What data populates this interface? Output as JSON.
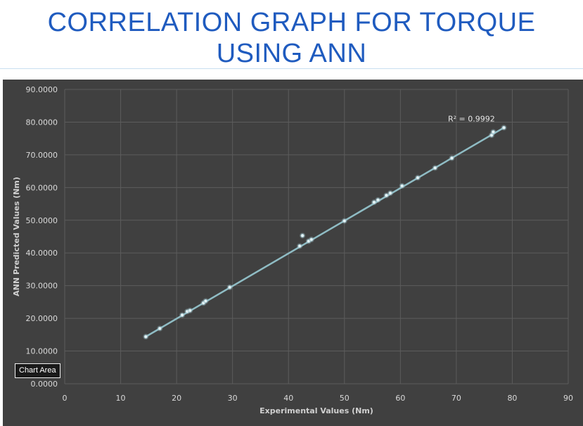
{
  "slide": {
    "title_line1": "CORRELATION GRAPH FOR TORQUE",
    "title_line2": "USING ANN"
  },
  "tooltip": {
    "label": "Chart Area"
  },
  "chart_data": {
    "type": "scatter",
    "xlabel": "Experimental Values (Nm)",
    "ylabel": "ANN Predicted Values (Nm)",
    "xlim": [
      0,
      90
    ],
    "ylim": [
      0,
      90
    ],
    "x_ticks": [
      0,
      10,
      20,
      30,
      40,
      50,
      60,
      70,
      80,
      90
    ],
    "y_ticks": [
      "0.0000",
      "10.0000",
      "20.0000",
      "30.0000",
      "40.0000",
      "50.0000",
      "60.0000",
      "70.0000",
      "80.0000",
      "90.0000"
    ],
    "grid": true,
    "trendline": {
      "type": "linear",
      "r2_label": "R² = 0.9992",
      "x": [
        14.5,
        78.5
      ],
      "y": [
        14.4,
        78.3
      ]
    },
    "points": [
      {
        "x": 14.5,
        "y": 14.4
      },
      {
        "x": 17.0,
        "y": 16.9
      },
      {
        "x": 21.0,
        "y": 21.0
      },
      {
        "x": 21.9,
        "y": 22.1
      },
      {
        "x": 22.4,
        "y": 22.4
      },
      {
        "x": 24.8,
        "y": 24.7
      },
      {
        "x": 25.2,
        "y": 25.3
      },
      {
        "x": 29.5,
        "y": 29.5
      },
      {
        "x": 42.0,
        "y": 42.1
      },
      {
        "x": 42.5,
        "y": 45.3
      },
      {
        "x": 43.6,
        "y": 43.6
      },
      {
        "x": 44.1,
        "y": 44.1
      },
      {
        "x": 50.0,
        "y": 49.8
      },
      {
        "x": 55.3,
        "y": 55.5
      },
      {
        "x": 56.0,
        "y": 56.2
      },
      {
        "x": 57.5,
        "y": 57.6
      },
      {
        "x": 58.2,
        "y": 58.3
      },
      {
        "x": 60.3,
        "y": 60.5
      },
      {
        "x": 63.1,
        "y": 63.0
      },
      {
        "x": 66.2,
        "y": 66.0
      },
      {
        "x": 69.2,
        "y": 69.0
      },
      {
        "x": 76.3,
        "y": 76.0
      },
      {
        "x": 76.6,
        "y": 77.0
      },
      {
        "x": 78.5,
        "y": 78.3
      }
    ],
    "colors": {
      "background": "#404040",
      "grid": "#5c5c5c",
      "series": "#a7c9d1",
      "trendline": "#8fbcc4"
    }
  }
}
